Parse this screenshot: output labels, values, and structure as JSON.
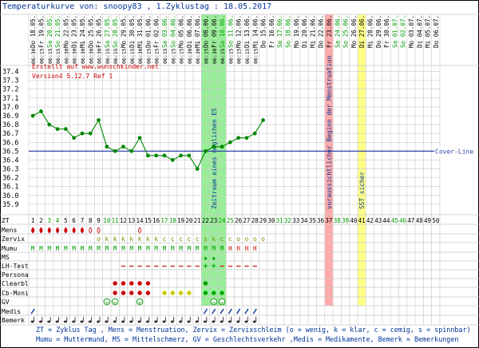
{
  "header": {
    "title": "Temperaturkurve von: snoopy83 , 1.Zyklustag : 18.05.2017",
    "credit": "Erstellt auf www.wunschkinder.net",
    "version": "Version4 5.12.7 Ref 1"
  },
  "legend": {
    "line1": "ZT = Zyklus Tag , Mens = Menstruation, Zervix = Zervixschleim (o = wenig, k = klar, c = cemig, s = spinnbar)",
    "line2": "Mumu = Muttermund, MS = Mittelschmerz, GV = Geschlechtsverkehr ,Medis = Medikamente, Bemerk = Bemerkungen"
  },
  "chart_data": {
    "type": "line",
    "title": "Temperaturkurve von: snoopy83 , 1.Zyklustag : 18.05.2017",
    "ylim": [
      35.8,
      37.45
    ],
    "y_ticks": [
      "37.4",
      "37.3",
      "37.2",
      "37.1",
      "37.0",
      "36.9",
      "36.8",
      "36.7",
      "36.6",
      "36.5",
      "36.4",
      "36.3",
      "36.2",
      "36.1",
      "36.0",
      "35.9"
    ],
    "grid": true,
    "cover_line": {
      "value": 36.5,
      "label": "Cover-Line",
      "color": "#3344aa"
    },
    "dates": [
      "Do 18.05.",
      "Fr 19.05.",
      "Sa 20.05.",
      "So 21.05.",
      "Mo 22.05.",
      "Di 23.05.",
      "Mi 24.05.",
      "Do 25.05.",
      "Fr 26.05.",
      "Sa 27.05.",
      "So 28.05.",
      "Mo 29.05.",
      "Di 30.05.",
      "Mi 31.05.",
      "Do 01.06.",
      "Fr 02.06.",
      "Sa 03.06.",
      "So 04.06.",
      "Mo 05.06.",
      "Di 06.06.",
      "Mi 07.06.",
      "Do 08.06.",
      "Fr 09.06.",
      "Sa 10.06.",
      "So 11.06.",
      "Mo 12.06.",
      "Di 13.06.",
      "Mi 14.06.",
      "Do 15.06.",
      "Fr 16.06.",
      "Sa 17.06.",
      "So 18.06.",
      "Mo 19.06.",
      "Di 20.06.",
      "Mi 21.06.",
      "Do 22.06.",
      "Fr 23.06.",
      "Sa 24.06.",
      "So 25.06.",
      "Mo 26.06.",
      "Di 27.06.",
      "Mi 28.06.",
      "Do 29.06.",
      "Fr 30.06.",
      "Sa 01.07.",
      "So 02.07.",
      "Mo 03.07.",
      "Di 04.07.",
      "Mi 05.07.",
      "Do 06.07."
    ],
    "times": [
      "06:30",
      "06:15",
      "06:15",
      "06:15",
      "06:30",
      "06:30",
      "06:30",
      "06:30",
      "06:30",
      "06:15",
      "06:15",
      "06:15",
      "06:15",
      "06:30",
      "06:15",
      "06:15",
      "06:15",
      "06:15",
      "06:15",
      "06:30",
      "06:30",
      "06:15",
      "06:30",
      "06:15",
      "06:15",
      "06:15",
      "06:15",
      "06:15"
    ],
    "days": [
      1,
      2,
      3,
      4,
      5,
      6,
      7,
      8,
      9,
      10,
      11,
      12,
      13,
      14,
      15,
      16,
      17,
      18,
      19,
      20,
      21,
      22,
      23,
      24,
      25,
      26,
      27,
      28,
      29,
      30,
      31,
      32,
      33,
      34,
      35,
      36,
      37,
      38,
      39,
      40,
      41,
      42,
      43,
      44,
      45,
      46,
      47,
      48,
      49,
      50
    ],
    "temperatures": [
      36.9,
      36.95,
      36.8,
      36.75,
      36.75,
      36.65,
      36.7,
      36.7,
      36.85,
      36.55,
      36.5,
      36.55,
      36.5,
      36.65,
      36.45,
      36.45,
      36.45,
      36.4,
      36.45,
      36.45,
      36.3,
      36.5,
      36.55,
      36.55,
      36.6,
      36.65,
      36.65,
      36.7,
      36.85
    ],
    "fertile_window": {
      "from_day": 22,
      "to_day": 24,
      "label": "Zeitraum eines möglichen ES"
    },
    "expected_period": {
      "day": 37,
      "label": "voraussichtlicher Beginn der Menstruation"
    },
    "sst": {
      "day": 41,
      "label": "SST sicher"
    },
    "rows": {
      "labels": [
        "ZT",
        "Mens",
        "Zervix",
        "Mumu",
        "MS",
        "LH-Test",
        "Persona",
        "Clearbl",
        "Cb-Moni",
        "GV",
        "Medis",
        "Bemerk"
      ],
      "mens": [
        "drop",
        "drop",
        "drop",
        "drop",
        "drop",
        "drop",
        "drop",
        "drop-o",
        "drop-o",
        "",
        "",
        "",
        "",
        "drop-o"
      ],
      "zervix": [
        "",
        "",
        "",
        "",
        "",
        "",
        "",
        "",
        "o",
        "k",
        "k",
        "k",
        "k",
        "k",
        "k",
        "k",
        "c",
        "c",
        "c",
        "c",
        "c",
        "s",
        "k",
        "c",
        "c",
        "o",
        "o",
        "o",
        "o"
      ],
      "mumu": [
        "M",
        "M",
        "M",
        "M",
        "M",
        "M",
        "M",
        "M",
        "M",
        "M",
        "M",
        "M",
        "M",
        "M",
        "M",
        "M",
        "M",
        "M",
        "M",
        "M",
        "M",
        "M",
        "M",
        "M",
        "H",
        "H",
        "H",
        "H"
      ],
      "ms": {
        "22": "▲",
        "23": "▲"
      },
      "lh": {
        "12": "–",
        "13": "–",
        "14": "–",
        "15": "–",
        "16": "–",
        "17": "–",
        "18": "–",
        "19": "–",
        "20": "–",
        "21": "–",
        "22": "+",
        "23": "+",
        "24": "–",
        "25": "–",
        "26": "–",
        "27": "–",
        "28": "–"
      },
      "clearbl": [
        11,
        12,
        13,
        14,
        15,
        22
      ],
      "cb_moni": {
        "11": "#cc0000",
        "12": "#cc0000",
        "13": "#cc0000",
        "14": "#cc0000",
        "15": "#cc0000",
        "17": "#cccc00",
        "18": "#cccc00",
        "19": "#cccc00",
        "20": "#cccc00",
        "22": "#00aa00",
        "23": "#00aa00",
        "24": "#00aa00"
      },
      "gv": [
        10,
        11,
        14,
        23,
        24
      ],
      "medis": [
        1,
        22,
        23,
        24,
        25,
        26,
        27,
        28
      ],
      "bemerk": [
        1,
        2,
        3,
        4,
        5,
        6,
        7,
        8,
        9,
        10,
        11,
        12,
        13,
        14,
        15,
        16,
        17,
        18,
        19,
        20,
        21,
        22,
        23,
        24,
        25,
        26,
        27,
        28
      ]
    },
    "colors": {
      "curve": "#008800",
      "fertile": "#99ee99",
      "expected": "#ffaaaa",
      "sst": "#ffff88",
      "drop": "#cc0000",
      "green_day": "#009900",
      "grid": "#c8c8c8"
    }
  }
}
